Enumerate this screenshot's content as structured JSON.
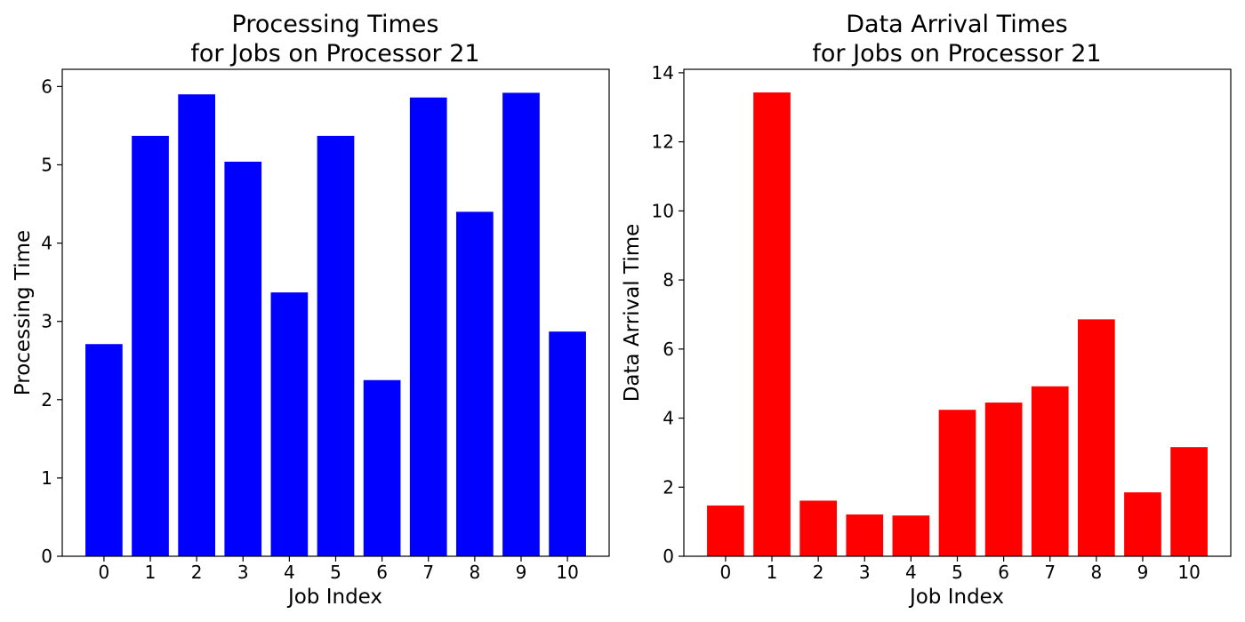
{
  "chart_data": [
    {
      "type": "bar",
      "title": "Processing Times\nfor Jobs on Processor 21",
      "title_lines": [
        "Processing Times",
        "for Jobs on Processor 21"
      ],
      "xlabel": "Job Index",
      "ylabel": "Processing Time",
      "categories": [
        "0",
        "1",
        "2",
        "3",
        "4",
        "5",
        "6",
        "7",
        "8",
        "9",
        "10"
      ],
      "values": [
        2.71,
        5.37,
        5.9,
        5.04,
        3.37,
        5.37,
        2.25,
        5.86,
        4.4,
        5.92,
        2.87
      ],
      "ylim": [
        0,
        6.22
      ],
      "yticks": [
        0,
        1,
        2,
        3,
        4,
        5,
        6
      ],
      "xlim": [
        -0.9,
        10.9
      ],
      "color": "#0000ff",
      "grid": false
    },
    {
      "type": "bar",
      "title": "Data Arrival Times\nfor Jobs on Processor 21",
      "title_lines": [
        "Data Arrival Times",
        "for Jobs on Processor 21"
      ],
      "xlabel": "Job Index",
      "ylabel": "Data Arrival Time",
      "categories": [
        "0",
        "1",
        "2",
        "3",
        "4",
        "5",
        "6",
        "7",
        "8",
        "9",
        "10"
      ],
      "values": [
        1.47,
        13.43,
        1.61,
        1.21,
        1.18,
        4.24,
        4.45,
        4.92,
        6.86,
        1.85,
        3.16
      ],
      "ylim": [
        0,
        14.1
      ],
      "yticks": [
        0,
        2,
        4,
        6,
        8,
        10,
        12,
        14
      ],
      "xlim": [
        -0.9,
        10.9
      ],
      "color": "#ff0000",
      "grid": false
    }
  ]
}
